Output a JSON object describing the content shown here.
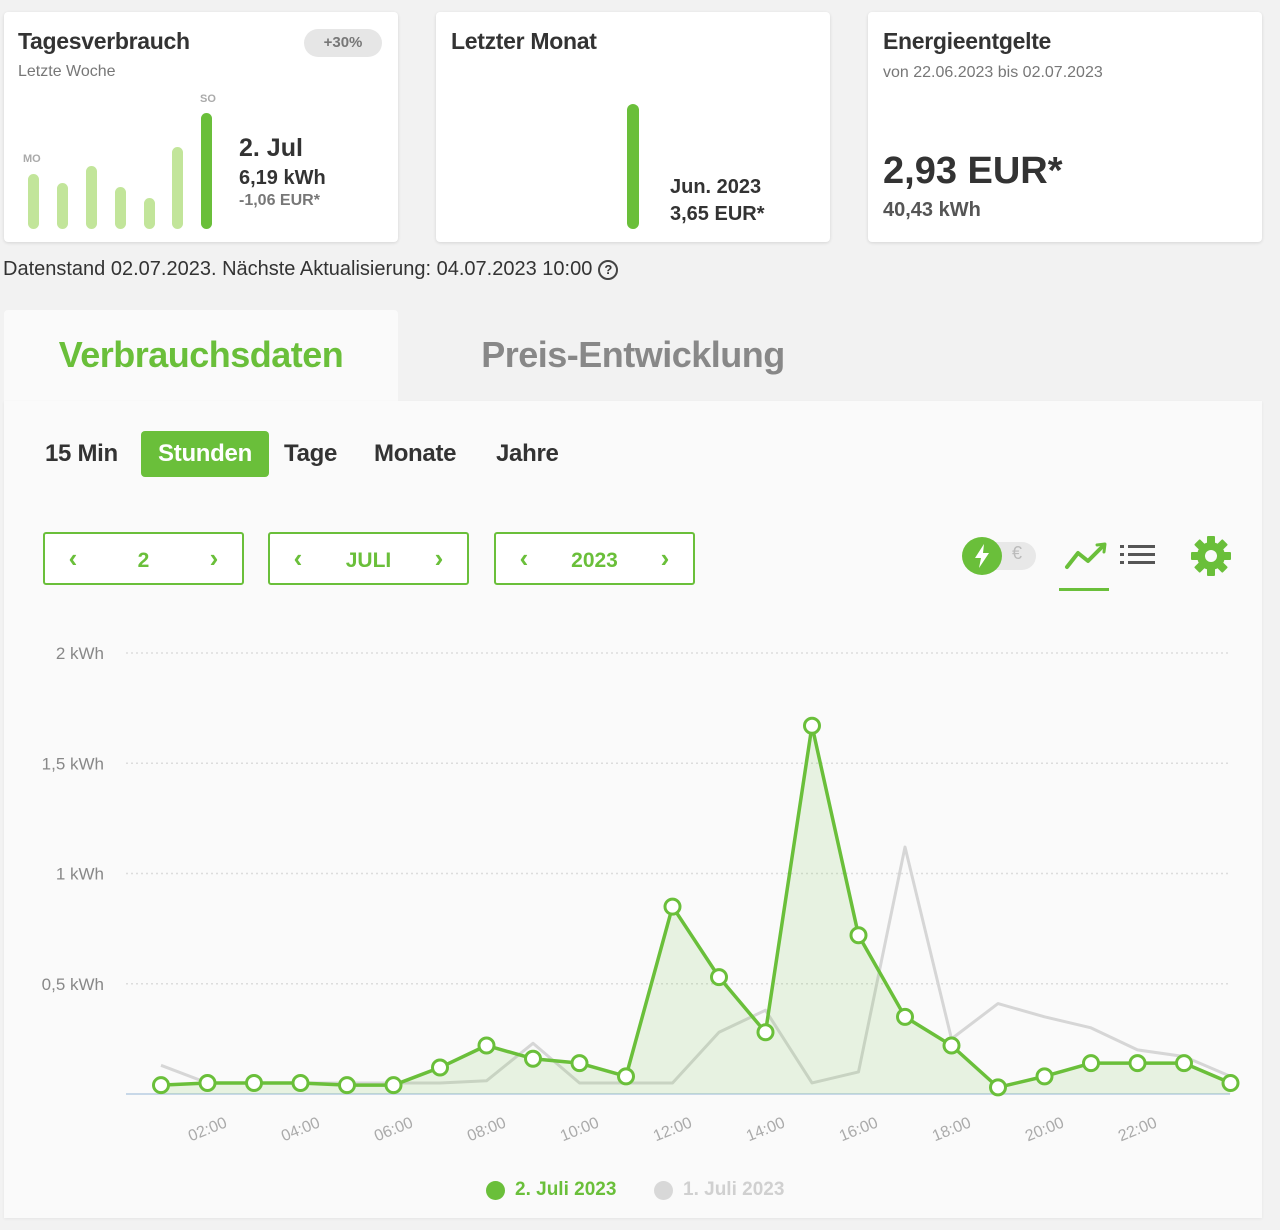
{
  "cards": {
    "tagesverbrauch": {
      "title": "Tagesverbrauch",
      "subtitle": "Letzte Woche",
      "badge": "+30%",
      "label_start": "MO",
      "label_end": "SO",
      "date": "2. Jul",
      "kwh": "6,19 kWh",
      "eur": "-1,06 EUR*",
      "bar_levels": [
        0.47,
        0.4,
        0.54,
        0.36,
        0.27,
        0.71,
        1.0
      ]
    },
    "letzter_monat": {
      "title": "Letzter Monat",
      "month": "Jun. 2023",
      "eur": "3,65 EUR*"
    },
    "energieentgelte": {
      "title": "Energieentgelte",
      "subtitle": "von 22.06.2023 bis 02.07.2023",
      "amount": "2,93 EUR*",
      "kwh": "40,43 kWh"
    }
  },
  "status": {
    "datenstand": "Datenstand 02.07.2023. Nächste Aktualisierung: 04.07.2023 10:00",
    "help_glyph": "?"
  },
  "tabs": [
    {
      "label": "Verbrauchsdaten",
      "active": true
    },
    {
      "label": "Preis-Entwicklung",
      "active": false
    }
  ],
  "granularity": [
    {
      "label": "15 Min",
      "active": false
    },
    {
      "label": "Stunden",
      "active": true
    },
    {
      "label": "Tage",
      "active": false
    },
    {
      "label": "Monate",
      "active": false
    },
    {
      "label": "Jahre",
      "active": false
    }
  ],
  "steppers": {
    "day": "2",
    "month": "JULI",
    "year": "2023",
    "prev_glyph": "‹",
    "next_glyph": "›"
  },
  "toggle": {
    "euro_glyph": "€"
  },
  "icons": [
    "lightning-icon",
    "line-chart-icon",
    "list-icon",
    "gear-icon"
  ],
  "colors": {
    "accent": "#6abf3a",
    "accent_light": "#c2e59a",
    "secondary": "#d0d0d0"
  },
  "chart_data": {
    "type": "line",
    "x": [
      "01:00",
      "02:00",
      "03:00",
      "04:00",
      "05:00",
      "06:00",
      "07:00",
      "08:00",
      "09:00",
      "10:00",
      "11:00",
      "12:00",
      "13:00",
      "14:00",
      "15:00",
      "16:00",
      "17:00",
      "18:00",
      "19:00",
      "20:00",
      "21:00",
      "22:00",
      "23:00",
      "24:00"
    ],
    "x_tick_labels": [
      "02:00",
      "04:00",
      "06:00",
      "08:00",
      "10:00",
      "12:00",
      "14:00",
      "16:00",
      "18:00",
      "20:00",
      "22:00"
    ],
    "y_tick_labels": [
      "0,5 kWh",
      "1 kWh",
      "1,5 kWh",
      "2 kWh"
    ],
    "ylim": [
      0,
      2
    ],
    "grid": true,
    "legend_position": "bottom-center",
    "series": [
      {
        "name": "2. Juli 2023",
        "values": [
          0.04,
          0.05,
          0.05,
          0.05,
          0.04,
          0.04,
          0.12,
          0.22,
          0.16,
          0.14,
          0.08,
          0.85,
          0.53,
          0.28,
          1.67,
          0.72,
          0.35,
          0.22,
          0.03,
          0.08,
          0.14,
          0.14,
          0.14,
          0.05
        ]
      },
      {
        "name": "1. Juli 2023",
        "values": [
          0.13,
          0.05,
          0.05,
          0.05,
          0.05,
          0.05,
          0.05,
          0.06,
          0.23,
          0.05,
          0.05,
          0.05,
          0.28,
          0.38,
          0.05,
          0.1,
          1.12,
          0.25,
          0.41,
          0.35,
          0.3,
          0.2,
          0.17,
          0.08
        ]
      }
    ]
  }
}
